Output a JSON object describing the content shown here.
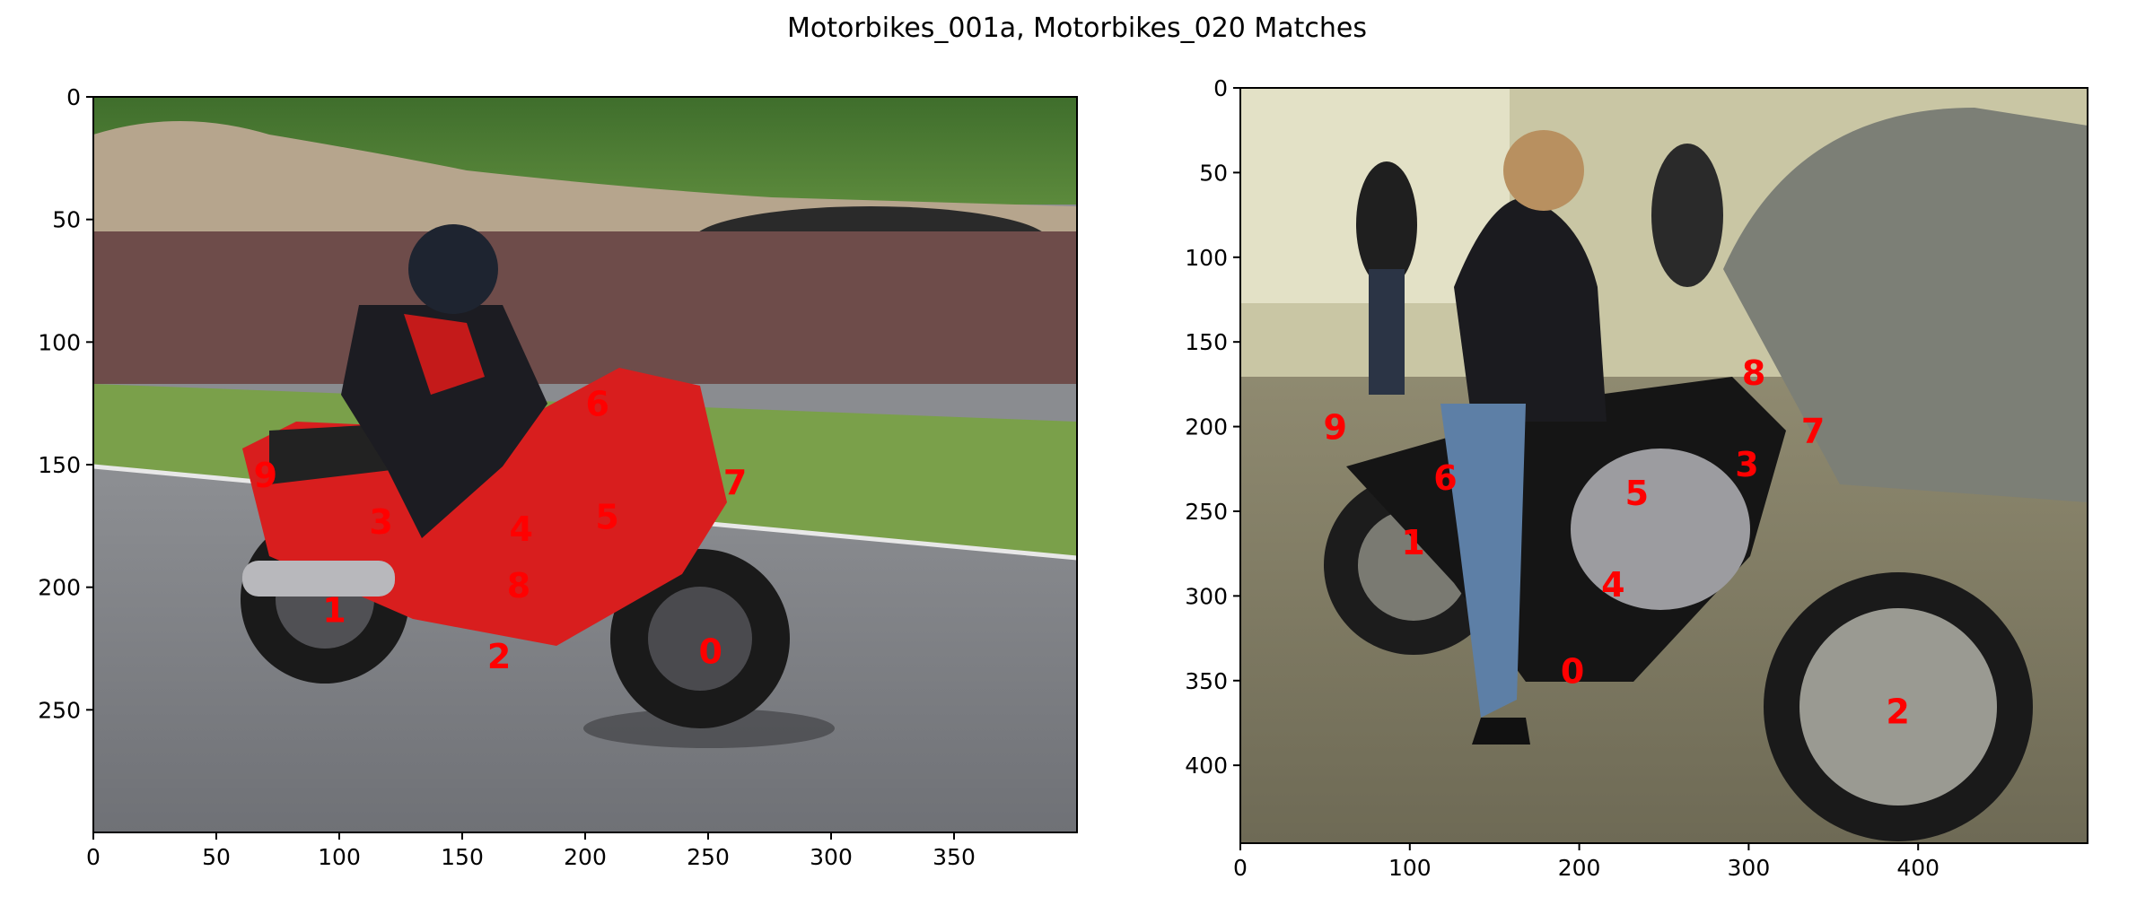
{
  "title": "Motorbikes_001a, Motorbikes_020 Matches",
  "colors": {
    "marker": "#ff0000",
    "axes": "#000000"
  },
  "panels": [
    {
      "image_name": "Motorbikes_001a",
      "xlim": [
        0,
        400
      ],
      "ylim": [
        300,
        0
      ],
      "xticks": [
        0,
        50,
        100,
        150,
        200,
        250,
        300,
        350
      ],
      "yticks": [
        0,
        50,
        100,
        150,
        200,
        250
      ],
      "points": [
        {
          "label": "0",
          "x": 251,
          "y": 226
        },
        {
          "label": "1",
          "x": 98,
          "y": 209
        },
        {
          "label": "2",
          "x": 165,
          "y": 228
        },
        {
          "label": "3",
          "x": 117,
          "y": 173
        },
        {
          "label": "4",
          "x": 174,
          "y": 176
        },
        {
          "label": "5",
          "x": 209,
          "y": 171
        },
        {
          "label": "6",
          "x": 205,
          "y": 125
        },
        {
          "label": "7",
          "x": 261,
          "y": 157
        },
        {
          "label": "8",
          "x": 173,
          "y": 199
        },
        {
          "label": "9",
          "x": 70,
          "y": 154
        }
      ]
    },
    {
      "image_name": "Motorbikes_020",
      "xlim": [
        0,
        500
      ],
      "ylim": [
        446,
        0
      ],
      "xticks": [
        0,
        100,
        200,
        300,
        400
      ],
      "yticks": [
        0,
        50,
        100,
        150,
        200,
        250,
        300,
        350,
        400
      ],
      "points": [
        {
          "label": "0",
          "x": 196,
          "y": 344
        },
        {
          "label": "1",
          "x": 102,
          "y": 268
        },
        {
          "label": "2",
          "x": 388,
          "y": 368
        },
        {
          "label": "3",
          "x": 299,
          "y": 222
        },
        {
          "label": "4",
          "x": 220,
          "y": 293
        },
        {
          "label": "5",
          "x": 234,
          "y": 239
        },
        {
          "label": "6",
          "x": 121,
          "y": 230
        },
        {
          "label": "7",
          "x": 338,
          "y": 202
        },
        {
          "label": "8",
          "x": 303,
          "y": 168
        },
        {
          "label": "9",
          "x": 56,
          "y": 200
        }
      ]
    }
  ]
}
